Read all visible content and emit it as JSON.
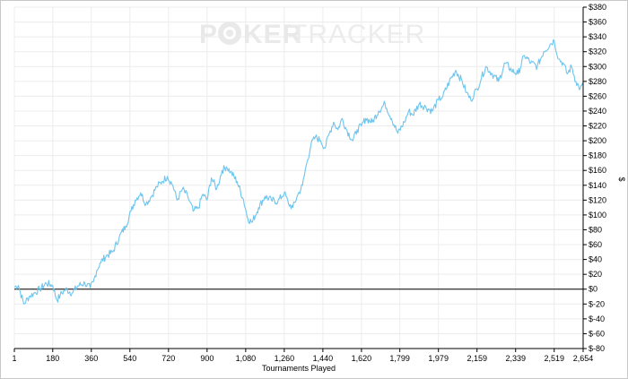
{
  "watermark": {
    "part1": "P",
    "part2": "KER",
    "part3": "TRACKER",
    "color": "#e9e9e9"
  },
  "chart_data": {
    "type": "line",
    "xlabel": "Tournaments Played",
    "ylabel": "$",
    "xlim": [
      1,
      2654
    ],
    "ylim": [
      -80,
      380
    ],
    "x_ticks": [
      "1",
      "180",
      "360",
      "540",
      "720",
      "900",
      "1,080",
      "1,260",
      "1,440",
      "1,620",
      "1,799",
      "1,979",
      "2,159",
      "2,339",
      "2,519",
      "2,654"
    ],
    "x_tick_values": [
      1,
      180,
      360,
      540,
      720,
      900,
      1080,
      1260,
      1440,
      1620,
      1799,
      1979,
      2159,
      2339,
      2519,
      2654
    ],
    "y_ticks": [
      "$-80",
      "$-60",
      "$-40",
      "$-20",
      "$0",
      "$20",
      "$40",
      "$60",
      "$80",
      "$100",
      "$120",
      "$140",
      "$160",
      "$180",
      "$200",
      "$220",
      "$240",
      "$260",
      "$280",
      "$300",
      "$320",
      "$340",
      "$360",
      "$380"
    ],
    "y_tick_values": [
      -80,
      -60,
      -40,
      -20,
      0,
      20,
      40,
      60,
      80,
      100,
      120,
      140,
      160,
      180,
      200,
      220,
      240,
      260,
      280,
      300,
      320,
      340,
      360,
      380
    ],
    "grid": true,
    "line_color": "#6cc5ee",
    "zero_line_color": "#000000",
    "series": [
      {
        "x": [
          1,
          20,
          45,
          70,
          95,
          120,
          150,
          180,
          200,
          215,
          240,
          270,
          300,
          330,
          355,
          370,
          385,
          400,
          430,
          460,
          490,
          520,
          545,
          565,
          590,
          615,
          640,
          665,
          690,
          715,
          740,
          760,
          785,
          810,
          835,
          860,
          880,
          900,
          920,
          945,
          970,
          990,
          1010,
          1040,
          1070,
          1090,
          1110,
          1140,
          1170,
          1200,
          1230,
          1260,
          1280,
          1300,
          1320,
          1345,
          1365,
          1385,
          1405,
          1430,
          1450,
          1470,
          1490,
          1510,
          1530,
          1550,
          1580,
          1600,
          1620,
          1640,
          1670,
          1700,
          1730,
          1760,
          1790,
          1820,
          1840,
          1860,
          1890,
          1920,
          1950,
          1979,
          2000,
          2030,
          2060,
          2090,
          2110,
          2130,
          2159,
          2180,
          2200,
          2230,
          2260,
          2290,
          2320,
          2350,
          2380,
          2410,
          2440,
          2470,
          2500,
          2519,
          2540,
          2560,
          2580,
          2600,
          2620,
          2640,
          2654
        ],
        "y": [
          3,
          5,
          -20,
          -10,
          -5,
          0,
          8,
          5,
          -15,
          -8,
          0,
          -5,
          5,
          8,
          2,
          10,
          25,
          35,
          45,
          50,
          70,
          85,
          105,
          120,
          130,
          115,
          125,
          138,
          145,
          152,
          140,
          120,
          135,
          125,
          105,
          110,
          128,
          120,
          150,
          135,
          160,
          165,
          158,
          145,
          120,
          95,
          90,
          110,
          125,
          120,
          118,
          130,
          115,
          110,
          125,
          140,
          170,
          195,
          205,
          200,
          190,
          210,
          225,
          215,
          230,
          215,
          200,
          215,
          220,
          230,
          225,
          240,
          250,
          230,
          210,
          225,
          240,
          235,
          250,
          245,
          240,
          255,
          260,
          280,
          295,
          280,
          265,
          255,
          270,
          285,
          300,
          290,
          280,
          305,
          295,
          290,
          315,
          305,
          300,
          320,
          330,
          335,
          310,
          305,
          290,
          300,
          280,
          270,
          275
        ]
      }
    ]
  }
}
